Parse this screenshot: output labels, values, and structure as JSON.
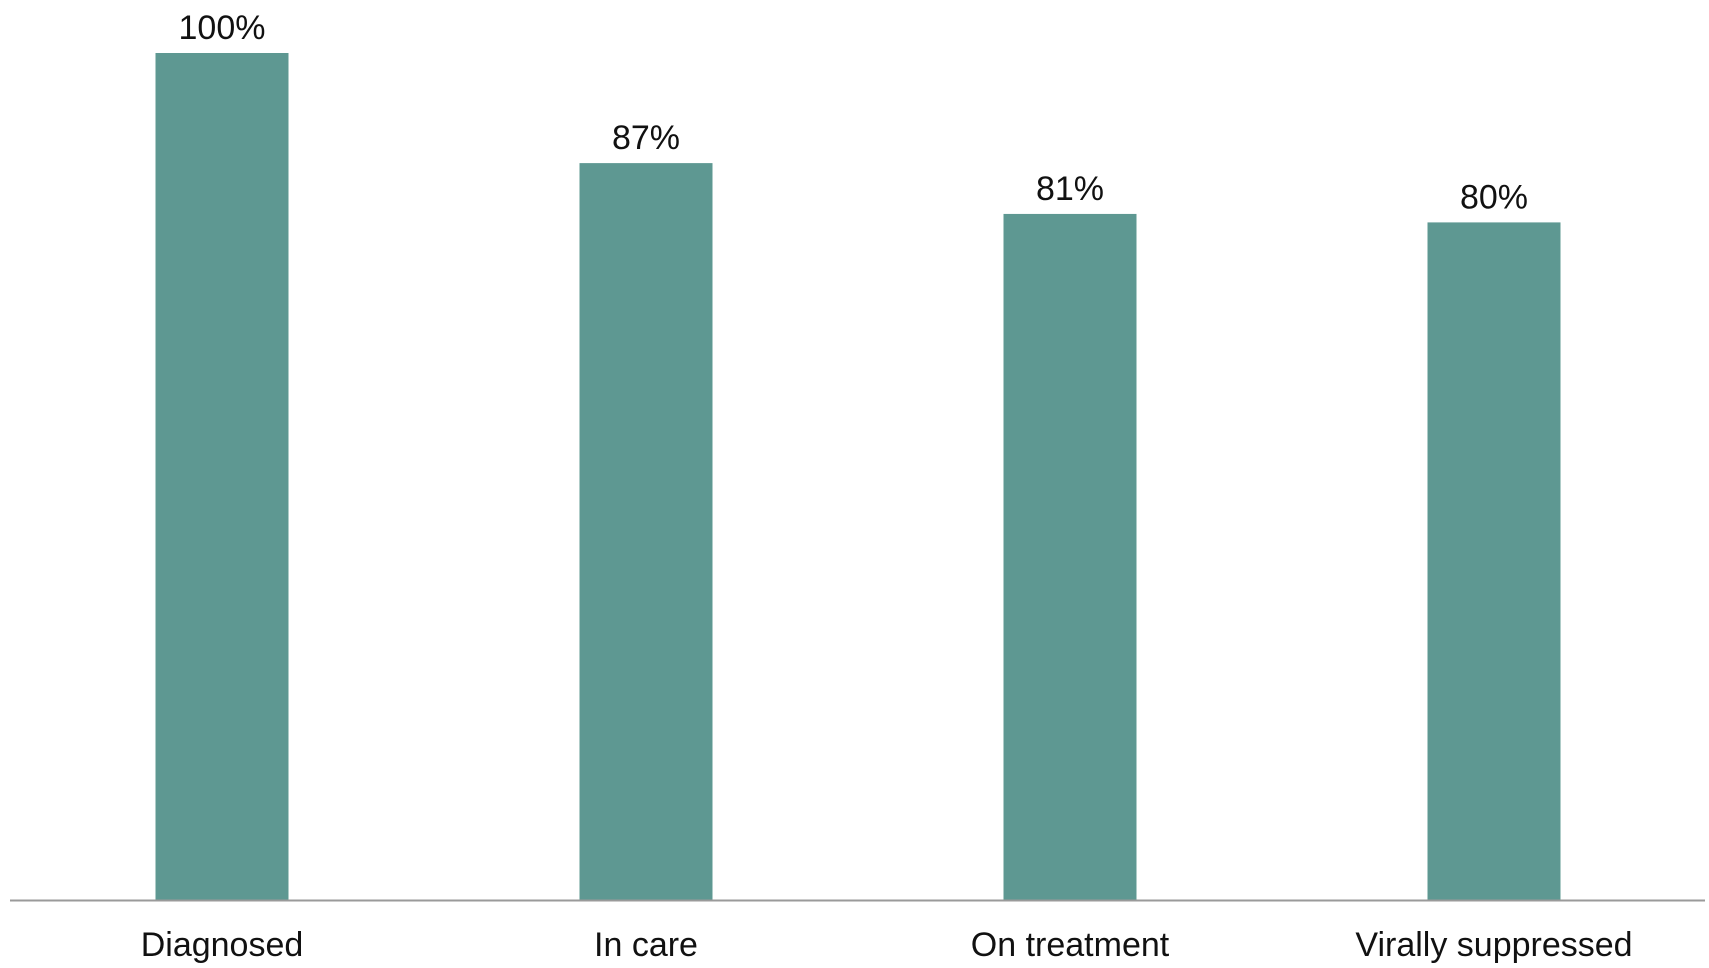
{
  "chart_data": {
    "type": "bar",
    "title": "",
    "xlabel": "",
    "ylabel": "",
    "categories": [
      "Diagnosed",
      "In care",
      "On treatment",
      "Virally suppressed"
    ],
    "values": [
      100,
      87,
      81,
      80
    ],
    "value_labels": [
      "100%",
      "87%",
      "81%",
      "80%"
    ],
    "ylim": [
      0,
      100
    ],
    "grid": false,
    "legend": "none",
    "bar_color": "#5e9892",
    "axis_color": "#9a9a9a"
  }
}
